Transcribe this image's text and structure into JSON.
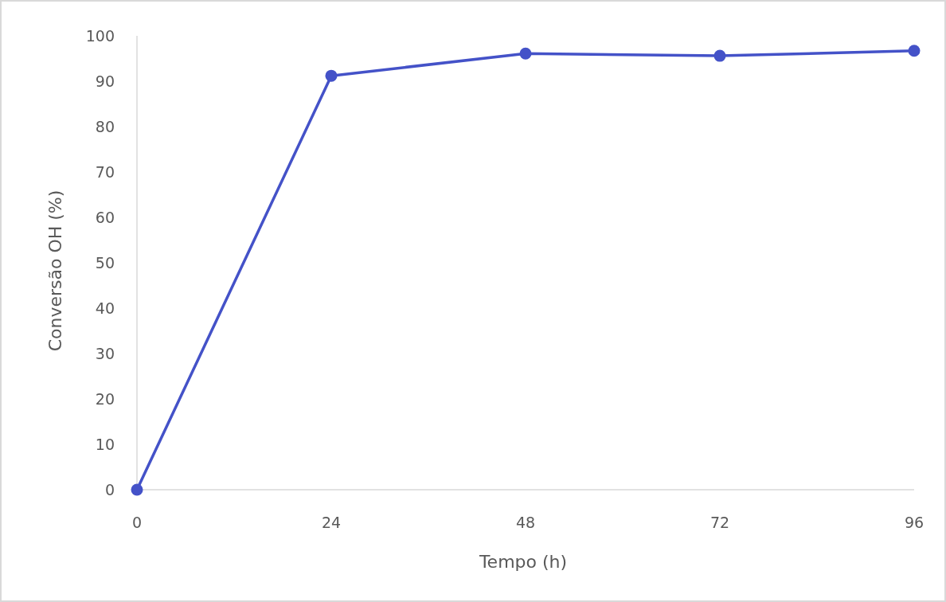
{
  "chart_data": {
    "type": "line",
    "xlabel": "Tempo (h)",
    "ylabel": "Conversão OH (%)",
    "x": [
      0,
      24,
      48,
      72,
      96
    ],
    "series": [
      {
        "color": "#4452c8",
        "values": [
          0,
          91.2,
          96.1,
          95.6,
          96.7
        ]
      }
    ],
    "xlim": [
      0,
      96
    ],
    "xticks": [
      0,
      24,
      48,
      72,
      96
    ],
    "ylim": [
      0,
      100
    ],
    "yticks": [
      0,
      10,
      20,
      30,
      40,
      50,
      60,
      70,
      80,
      90,
      100
    ],
    "grid": false,
    "marker": "circle",
    "line_style": "solid"
  }
}
